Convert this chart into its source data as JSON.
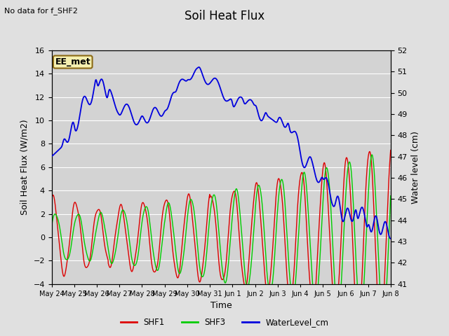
{
  "title": "Soil Heat Flux",
  "subtitle": "No data for f_SHF2",
  "ylabel_left": "Soil Heat Flux (W/m2)",
  "ylabel_right": "Water level (cm)",
  "xlabel": "Time",
  "annotation": "EE_met",
  "ylim_left": [
    -4,
    16
  ],
  "ylim_right": [
    41.0,
    52.0
  ],
  "yticks_left": [
    -4,
    -2,
    0,
    2,
    4,
    6,
    8,
    10,
    12,
    14,
    16
  ],
  "yticks_right": [
    41.0,
    42.0,
    43.0,
    44.0,
    45.0,
    46.0,
    47.0,
    48.0,
    49.0,
    50.0,
    51.0,
    52.0
  ],
  "xtick_labels": [
    "May 24",
    "May 25",
    "May 26",
    "May 27",
    "May 28",
    "May 29",
    "May 30",
    "May 31",
    "Jun 1",
    "Jun 2",
    "Jun 3",
    "Jun 4",
    "Jun 5",
    "Jun 6",
    "Jun 7",
    "Jun 8"
  ],
  "background_color": "#e0e0e0",
  "plot_bg_color": "#d3d3d3",
  "line_colors": {
    "SHF1": "#dd0000",
    "SHF3": "#00cc00",
    "WaterLevel_cm": "#0000dd"
  },
  "grid_color": "#ffffff",
  "title_fontsize": 12,
  "label_fontsize": 9,
  "tick_fontsize": 8,
  "annotation_fontsize": 9
}
